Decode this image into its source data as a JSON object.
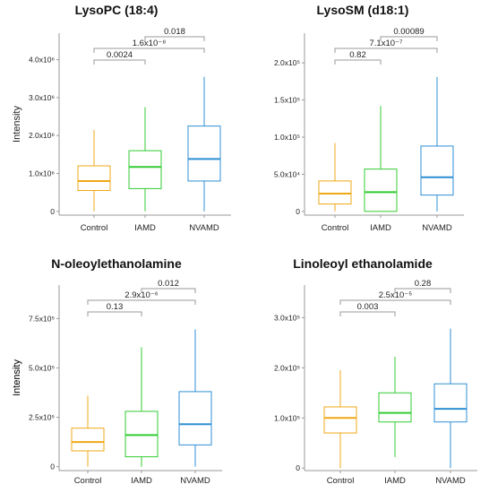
{
  "colors": {
    "Control": "#f0a818",
    "IAMD": "#33cc33",
    "NVAMD": "#2f8fd4",
    "bracket": "#9a9a9a",
    "axis": "#9a9a9a"
  },
  "chart_data": [
    {
      "type": "box",
      "title": "LysoPC (18:4)",
      "ylabel": "Intensity",
      "categories": [
        "Control",
        "IAMD",
        "NVAMD"
      ],
      "ylim": [
        -100000,
        4700000
      ],
      "yticks": [
        0,
        1000000,
        2000000,
        3000000,
        4000000
      ],
      "ytick_labels": [
        "0",
        "1.0x10⁶",
        "2.0x10⁶",
        "3.0x10⁶",
        "4.0x10⁶"
      ],
      "boxes": [
        {
          "category": "Control",
          "whisker_low": 0,
          "q1": 550000,
          "median": 800000,
          "q3": 1200000,
          "whisker_high": 2150000
        },
        {
          "category": "IAMD",
          "whisker_low": 0,
          "q1": 600000,
          "median": 1170000,
          "q3": 1600000,
          "whisker_high": 2750000
        },
        {
          "category": "NVAMD",
          "whisker_low": 0,
          "q1": 800000,
          "median": 1380000,
          "q3": 2250000,
          "whisker_high": 3550000
        }
      ],
      "comparisons": [
        {
          "from": "Control",
          "to": "IAMD",
          "label": "0.0024",
          "level": 1
        },
        {
          "from": "Control",
          "to": "NVAMD",
          "label": "1.6x10⁻⁸",
          "level": 2
        },
        {
          "from": "IAMD",
          "to": "NVAMD",
          "label": "0.018",
          "level": 3
        }
      ]
    },
    {
      "type": "box",
      "title": "LysoSM (d18:1)",
      "ylabel": "",
      "categories": [
        "Control",
        "IAMD",
        "NVAMD"
      ],
      "ylim": [
        -5000,
        240000
      ],
      "yticks": [
        0,
        50000,
        100000,
        150000,
        200000
      ],
      "ytick_labels": [
        "0",
        "5.0x10⁴",
        "1.0x10⁵",
        "1.5x10⁵",
        "2.0x10⁵"
      ],
      "boxes": [
        {
          "category": "Control",
          "whisker_low": 0,
          "q1": 10000,
          "median": 24000,
          "q3": 41000,
          "whisker_high": 92000
        },
        {
          "category": "IAMD",
          "whisker_low": 0,
          "q1": 0,
          "median": 26000,
          "q3": 57000,
          "whisker_high": 142000
        },
        {
          "category": "NVAMD",
          "whisker_low": 0,
          "q1": 22000,
          "median": 46000,
          "q3": 88000,
          "whisker_high": 181000
        }
      ],
      "comparisons": [
        {
          "from": "Control",
          "to": "IAMD",
          "label": "0.82",
          "level": 1
        },
        {
          "from": "Control",
          "to": "NVAMD",
          "label": "7.1x10⁻⁷",
          "level": 2
        },
        {
          "from": "IAMD",
          "to": "NVAMD",
          "label": "0.00089",
          "level": 3
        }
      ]
    },
    {
      "type": "box",
      "title": "N-oleoylethanolamine",
      "ylabel": "Intensity",
      "categories": [
        "Control",
        "IAMD",
        "NVAMD"
      ],
      "ylim": [
        -20000,
        920000
      ],
      "yticks": [
        0,
        250000,
        500000,
        750000
      ],
      "ytick_labels": [
        "0",
        "2.5x10⁵",
        "5.0x10⁵",
        "7.5x10⁵"
      ],
      "boxes": [
        {
          "category": "Control",
          "whisker_low": 0,
          "q1": 80000,
          "median": 125000,
          "q3": 195000,
          "whisker_high": 360000
        },
        {
          "category": "IAMD",
          "whisker_low": 0,
          "q1": 50000,
          "median": 160000,
          "q3": 280000,
          "whisker_high": 605000
        },
        {
          "category": "NVAMD",
          "whisker_low": 0,
          "q1": 110000,
          "median": 215000,
          "q3": 380000,
          "whisker_high": 695000
        }
      ],
      "comparisons": [
        {
          "from": "Control",
          "to": "IAMD",
          "label": "0.13",
          "level": 1
        },
        {
          "from": "Control",
          "to": "NVAMD",
          "label": "2.9x10⁻⁶",
          "level": 2
        },
        {
          "from": "IAMD",
          "to": "NVAMD",
          "label": "0.012",
          "level": 3
        }
      ]
    },
    {
      "type": "box",
      "title": "Linoleoyl ethanolamide",
      "ylabel": "Intensity",
      "categories": [
        "Control",
        "IAMD",
        "NVAMD"
      ],
      "ylim": [
        -5000,
        365000
      ],
      "yticks": [
        0,
        100000,
        200000,
        300000
      ],
      "ytick_labels": [
        "0",
        "1.0x10⁵",
        "2.0x10⁵",
        "3.0x10⁵"
      ],
      "boxes": [
        {
          "category": "Control",
          "whisker_low": 0,
          "q1": 70000,
          "median": 100000,
          "q3": 122000,
          "whisker_high": 195000
        },
        {
          "category": "IAMD",
          "whisker_low": 22000,
          "q1": 92000,
          "median": 110000,
          "q3": 150000,
          "whisker_high": 222000
        },
        {
          "category": "NVAMD",
          "whisker_low": 0,
          "q1": 92000,
          "median": 118000,
          "q3": 168000,
          "whisker_high": 278000
        }
      ],
      "comparisons": [
        {
          "from": "Control",
          "to": "IAMD",
          "label": "0.003",
          "level": 1
        },
        {
          "from": "Control",
          "to": "NVAMD",
          "label": "2.5x10⁻⁵",
          "level": 2
        },
        {
          "from": "IAMD",
          "to": "NVAMD",
          "label": "0.28",
          "level": 3
        }
      ]
    }
  ]
}
